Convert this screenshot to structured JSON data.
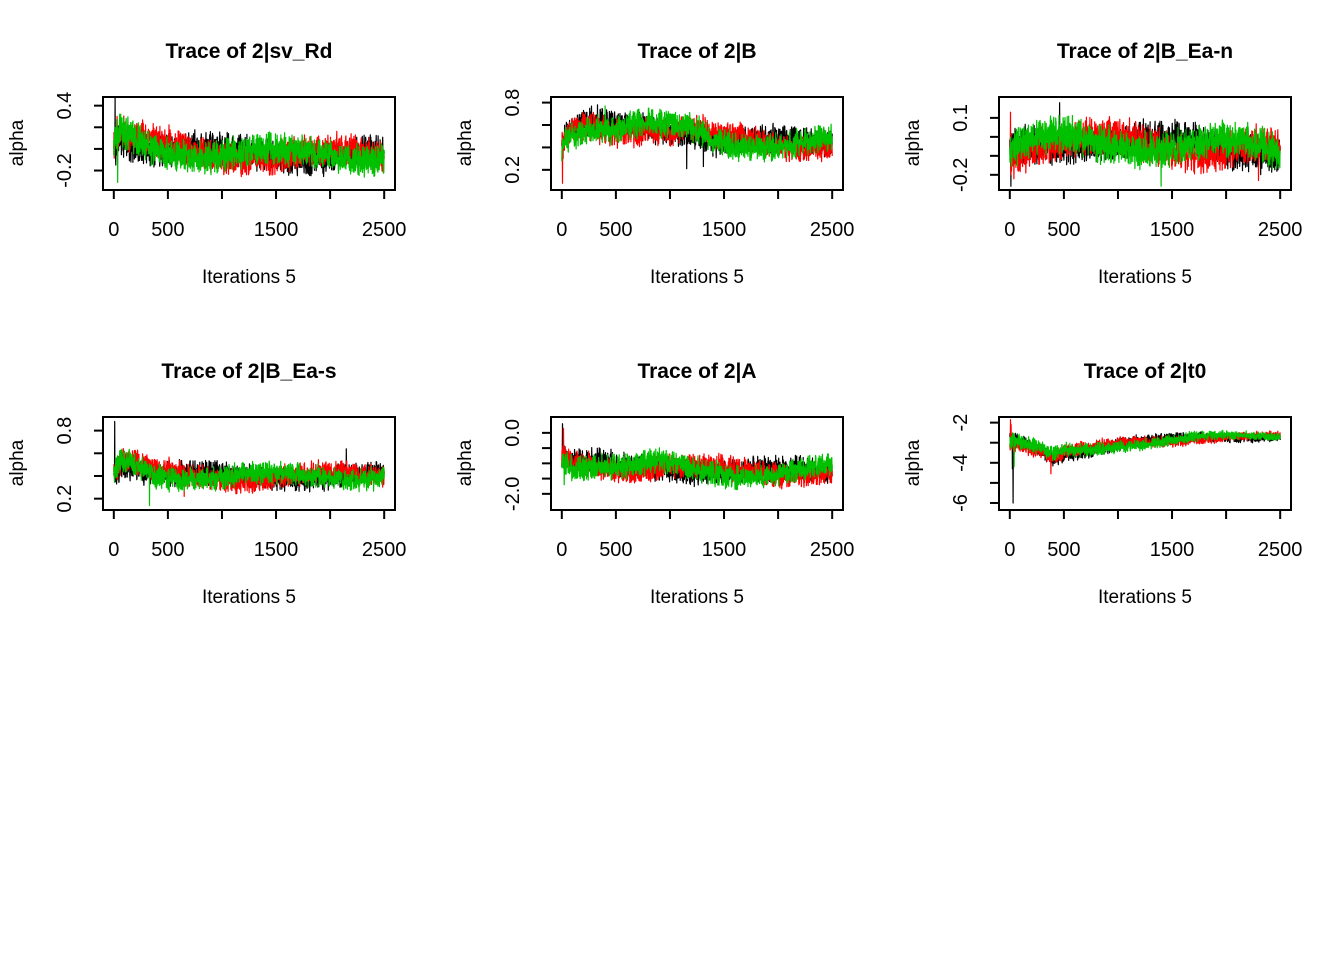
{
  "figure": {
    "background": "#ffffff",
    "text_color": "#000000",
    "grid": "off",
    "legend": "none",
    "description": "2x3 grid of MCMC trace plots, 3 overlaid chains per panel"
  },
  "chain_colors": {
    "chain1": "#000000",
    "chain2": "#ff0000",
    "chain3": "#00c000"
  },
  "chart_data": [
    {
      "type": "line",
      "title": "Trace of 2|sv_Rd",
      "xlabel": "Iterations 5",
      "ylabel": "alpha",
      "x": {
        "lim": [
          -100,
          2600
        ],
        "ticks": [
          0,
          500,
          1000,
          1500,
          2000,
          2500
        ],
        "tick_labels": [
          "0",
          "500",
          "",
          "1500",
          "",
          "2500"
        ]
      },
      "y": {
        "lim": [
          -0.38,
          0.48
        ],
        "ticks": [
          0.4,
          0.2,
          0.0,
          -0.2
        ],
        "tick_labels": [
          "0.4",
          "",
          "",
          "-0.2"
        ]
      },
      "n_points": 1250,
      "noise": [
        0.12,
        0.11
      ],
      "trend": [
        [
          0,
          0.05
        ],
        [
          40,
          0.15
        ],
        [
          100,
          0.12
        ],
        [
          250,
          0.06
        ],
        [
          500,
          0.0
        ],
        [
          800,
          -0.04
        ],
        [
          1500,
          -0.05
        ],
        [
          2500,
          -0.05
        ]
      ],
      "series": [
        {
          "name": "chain 1",
          "color": "#000000",
          "seed": 11,
          "spikes": [
            [
              12,
              0.47
            ],
            [
              18,
              -0.15
            ]
          ]
        },
        {
          "name": "chain 2",
          "color": "#ff0000",
          "seed": 12,
          "spikes": [
            [
              30,
              0.3
            ]
          ]
        },
        {
          "name": "chain 3",
          "color": "#00c000",
          "seed": 13,
          "spikes": [
            [
              26,
              0.27
            ],
            [
              36,
              -0.31
            ]
          ]
        }
      ]
    },
    {
      "type": "line",
      "title": "Trace of 2|B",
      "xlabel": "Iterations 5",
      "ylabel": "alpha",
      "x": {
        "lim": [
          -100,
          2600
        ],
        "ticks": [
          0,
          500,
          1000,
          1500,
          2000,
          2500
        ],
        "tick_labels": [
          "0",
          "500",
          "",
          "1500",
          "",
          "2500"
        ]
      },
      "y": {
        "lim": [
          0.02,
          0.85
        ],
        "ticks": [
          0.8,
          0.6,
          0.4,
          0.2
        ],
        "tick_labels": [
          "0.8",
          "",
          "",
          "0.2"
        ]
      },
      "n_points": 1250,
      "noise": [
        0.1,
        0.09
      ],
      "trend": [
        [
          0,
          0.45
        ],
        [
          80,
          0.55
        ],
        [
          250,
          0.6
        ],
        [
          450,
          0.57
        ],
        [
          700,
          0.58
        ],
        [
          1000,
          0.56
        ],
        [
          1250,
          0.55
        ],
        [
          1400,
          0.48
        ],
        [
          1700,
          0.45
        ],
        [
          2100,
          0.43
        ],
        [
          2500,
          0.45
        ]
      ],
      "series": [
        {
          "name": "chain 1",
          "color": "#000000",
          "seed": 21,
          "spikes": [
            [
              330,
              0.78
            ],
            [
              1155,
              0.21
            ],
            [
              1310,
              0.23
            ]
          ]
        },
        {
          "name": "chain 2",
          "color": "#ff0000",
          "seed": 22,
          "spikes": [
            [
              6,
              0.08
            ],
            [
              12,
              0.3
            ],
            [
              18,
              0.5
            ]
          ]
        },
        {
          "name": "chain 3",
          "color": "#00c000",
          "seed": 23,
          "spikes": [
            [
              400,
              0.77
            ]
          ]
        }
      ]
    },
    {
      "type": "line",
      "title": "Trace of 2|B_Ea-n",
      "xlabel": "Iterations 5",
      "ylabel": "alpha",
      "x": {
        "lim": [
          -100,
          2600
        ],
        "ticks": [
          0,
          500,
          1000,
          1500,
          2000,
          2500
        ],
        "tick_labels": [
          "0",
          "500",
          "",
          "1500",
          "",
          "2500"
        ]
      },
      "y": {
        "lim": [
          -0.28,
          0.21
        ],
        "ticks": [
          0.1,
          0.0,
          -0.1,
          -0.2
        ],
        "tick_labels": [
          "0.1",
          "",
          "",
          "-0.2"
        ]
      },
      "n_points": 1250,
      "noise": [
        0.075,
        0.075
      ],
      "trend": [
        [
          0,
          -0.1
        ],
        [
          100,
          -0.05
        ],
        [
          300,
          -0.03
        ],
        [
          600,
          -0.02
        ],
        [
          1000,
          -0.03
        ],
        [
          1600,
          -0.05
        ],
        [
          2100,
          -0.05
        ],
        [
          2500,
          -0.07
        ]
      ],
      "series": [
        {
          "name": "chain 1",
          "color": "#000000",
          "seed": 31,
          "spikes": [
            [
              10,
              -0.26
            ],
            [
              460,
              0.18
            ]
          ]
        },
        {
          "name": "chain 2",
          "color": "#ff0000",
          "seed": 32,
          "spikes": [
            [
              6,
              0.13
            ],
            [
              2300,
              -0.23
            ]
          ]
        },
        {
          "name": "chain 3",
          "color": "#00c000",
          "seed": 33,
          "spikes": [
            [
              1400,
              -0.26
            ]
          ]
        }
      ]
    },
    {
      "type": "line",
      "title": "Trace of 2|B_Ea-s",
      "xlabel": "Iterations 5",
      "ylabel": "alpha",
      "x": {
        "lim": [
          -100,
          2600
        ],
        "ticks": [
          0,
          500,
          1000,
          1500,
          2000,
          2500
        ],
        "tick_labels": [
          "0",
          "500",
          "",
          "1500",
          "",
          "2500"
        ]
      },
      "y": {
        "lim": [
          0.1,
          0.92
        ],
        "ticks": [
          0.8,
          0.6,
          0.4,
          0.2
        ],
        "tick_labels": [
          "0.8",
          "",
          "",
          "0.2"
        ]
      },
      "n_points": 1250,
      "noise": [
        0.085,
        0.075
      ],
      "trend": [
        [
          0,
          0.42
        ],
        [
          60,
          0.5
        ],
        [
          150,
          0.52
        ],
        [
          250,
          0.47
        ],
        [
          400,
          0.42
        ],
        [
          700,
          0.4
        ],
        [
          1200,
          0.39
        ],
        [
          2000,
          0.4
        ],
        [
          2500,
          0.41
        ]
      ],
      "series": [
        {
          "name": "chain 1",
          "color": "#000000",
          "seed": 41,
          "spikes": [
            [
              8,
              0.88
            ],
            [
              2150,
              0.64
            ]
          ]
        },
        {
          "name": "chain 2",
          "color": "#ff0000",
          "seed": 42,
          "spikes": [
            [
              650,
              0.22
            ]
          ]
        },
        {
          "name": "chain 3",
          "color": "#00c000",
          "seed": 43,
          "spikes": [
            [
              330,
              0.14
            ]
          ]
        }
      ]
    },
    {
      "type": "line",
      "title": "Trace of 2|A",
      "xlabel": "Iterations 5",
      "ylabel": "alpha",
      "x": {
        "lim": [
          -100,
          2600
        ],
        "ticks": [
          0,
          500,
          1000,
          1500,
          2000,
          2500
        ],
        "tick_labels": [
          "0",
          "500",
          "",
          "1500",
          "",
          "2500"
        ]
      },
      "y": {
        "lim": [
          -2.53,
          0.52
        ],
        "ticks": [
          0.0,
          -0.5,
          -1.0,
          -1.5,
          -2.0
        ],
        "tick_labels": [
          "0.0",
          "",
          "",
          "",
          "-2.0"
        ]
      },
      "n_points": 1250,
      "noise": [
        0.32,
        0.3
      ],
      "trend": [
        [
          0,
          -0.8
        ],
        [
          100,
          -1.0
        ],
        [
          300,
          -1.05
        ],
        [
          600,
          -1.15
        ],
        [
          900,
          -1.05
        ],
        [
          1200,
          -1.2
        ],
        [
          1600,
          -1.3
        ],
        [
          2000,
          -1.3
        ],
        [
          2500,
          -1.2
        ]
      ],
      "series": [
        {
          "name": "chain 1",
          "color": "#000000",
          "seed": 51,
          "spikes": [
            [
              6,
              0.3
            ],
            [
              12,
              -0.55
            ]
          ]
        },
        {
          "name": "chain 2",
          "color": "#ff0000",
          "seed": 52,
          "spikes": [
            [
              16,
              0.15
            ]
          ]
        },
        {
          "name": "chain 3",
          "color": "#00c000",
          "seed": 53,
          "spikes": [
            [
              22,
              -1.7
            ]
          ]
        }
      ]
    },
    {
      "type": "line",
      "title": "Trace of 2|t0",
      "xlabel": "Iterations 5",
      "ylabel": "alpha",
      "x": {
        "lim": [
          -100,
          2600
        ],
        "ticks": [
          0,
          500,
          1000,
          1500,
          2000,
          2500
        ],
        "tick_labels": [
          "0",
          "500",
          "",
          "1500",
          "",
          "2500"
        ]
      },
      "y": {
        "lim": [
          -6.35,
          -1.72
        ],
        "ticks": [
          -2,
          -3,
          -4,
          -5,
          -6
        ],
        "tick_labels": [
          "-2",
          "",
          "-4",
          "",
          "-6"
        ]
      },
      "n_points": 1250,
      "noise": [
        0.3,
        0.15
      ],
      "trend": [
        [
          0,
          -2.9
        ],
        [
          60,
          -3.0
        ],
        [
          150,
          -3.1
        ],
        [
          280,
          -3.35
        ],
        [
          400,
          -3.7
        ],
        [
          520,
          -3.45
        ],
        [
          700,
          -3.35
        ],
        [
          900,
          -3.2
        ],
        [
          1100,
          -3.05
        ],
        [
          1400,
          -2.9
        ],
        [
          1700,
          -2.75
        ],
        [
          2000,
          -2.7
        ],
        [
          2500,
          -2.68
        ]
      ],
      "series": [
        {
          "name": "chain 1",
          "color": "#000000",
          "seed": 61,
          "spikes": [
            [
              24,
              -4.3
            ],
            [
              30,
              -6.0
            ]
          ]
        },
        {
          "name": "chain 2",
          "color": "#ff0000",
          "seed": 62,
          "spikes": [
            [
              6,
              -1.85
            ],
            [
              12,
              -2.1
            ],
            [
              380,
              -4.55
            ]
          ]
        },
        {
          "name": "chain 3",
          "color": "#00c000",
          "seed": 63,
          "spikes": [
            [
              40,
              -4.2
            ]
          ]
        }
      ]
    }
  ]
}
